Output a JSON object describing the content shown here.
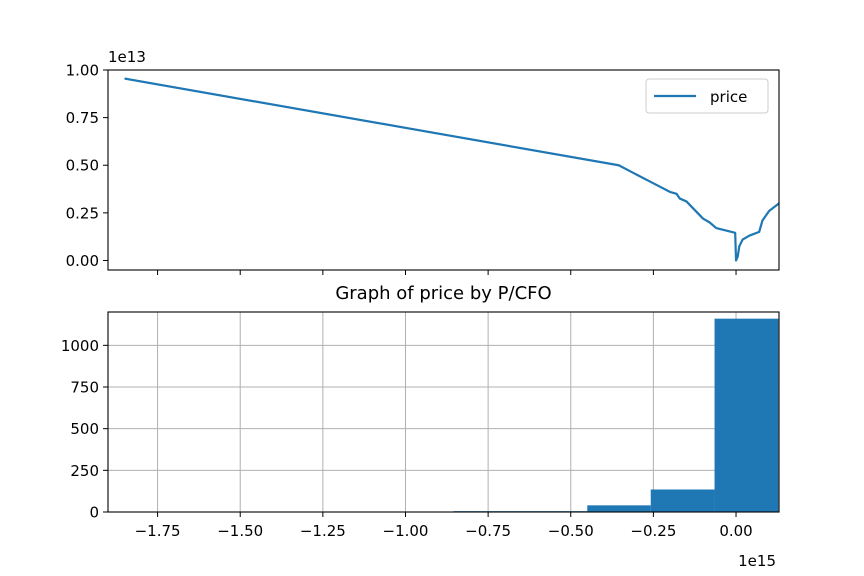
{
  "chart_data": [
    {
      "type": "line",
      "title": "",
      "xlabel": "",
      "ylabel": "",
      "y_offset_text": "1e13",
      "ylim": [
        -0.05,
        1.0
      ],
      "xlim": [
        -1.9,
        0.13
      ],
      "yticks": [
        0.0,
        0.25,
        0.5,
        0.75,
        1.0
      ],
      "ytick_labels": [
        "0.00",
        "0.25",
        "0.50",
        "0.75",
        "1.00"
      ],
      "grid": false,
      "legend": {
        "placement": "top-right",
        "entries": [
          "price"
        ]
      },
      "series": [
        {
          "name": "price",
          "color": "#1f77b4",
          "x": [
            -1.85,
            -0.355,
            -0.3,
            -0.25,
            -0.2,
            -0.18,
            -0.17,
            -0.15,
            -0.1,
            -0.08,
            -0.06,
            -0.0025,
            0.0,
            0.005,
            0.01,
            0.02,
            0.04,
            0.07,
            0.08,
            0.1,
            0.13
          ],
          "y": [
            0.955,
            0.5,
            0.45,
            0.405,
            0.36,
            0.35,
            0.325,
            0.31,
            0.22,
            0.2,
            0.17,
            0.145,
            0.0,
            0.02,
            0.075,
            0.11,
            0.13,
            0.15,
            0.21,
            0.26,
            0.3
          ]
        }
      ]
    },
    {
      "type": "bar",
      "title": "Graph of price by P/CFO",
      "xlabel": "",
      "ylabel": "",
      "x_offset_text": "1e15",
      "xlim": [
        -1.9,
        0.13
      ],
      "ylim": [
        0,
        1200
      ],
      "xticks": [
        -1.75,
        -1.5,
        -1.25,
        -1.0,
        -0.75,
        -0.5,
        -0.25,
        0.0
      ],
      "xtick_labels": [
        "−1.75",
        "−1.50",
        "−1.25",
        "−1.00",
        "−0.75",
        "−0.50",
        "−0.25",
        "0.00"
      ],
      "yticks": [
        0,
        250,
        500,
        750,
        1000
      ],
      "ytick_labels": [
        "0",
        "250",
        "500",
        "750",
        "1000"
      ],
      "grid": true,
      "color": "#1f77b4",
      "bins": [
        {
          "x0": -0.855,
          "x1": -0.45,
          "value": 5
        },
        {
          "x0": -0.45,
          "x1": -0.258,
          "value": 40
        },
        {
          "x0": -0.258,
          "x1": -0.065,
          "value": 135
        },
        {
          "x0": -0.065,
          "x1": 0.128,
          "value": 1160
        }
      ]
    }
  ]
}
